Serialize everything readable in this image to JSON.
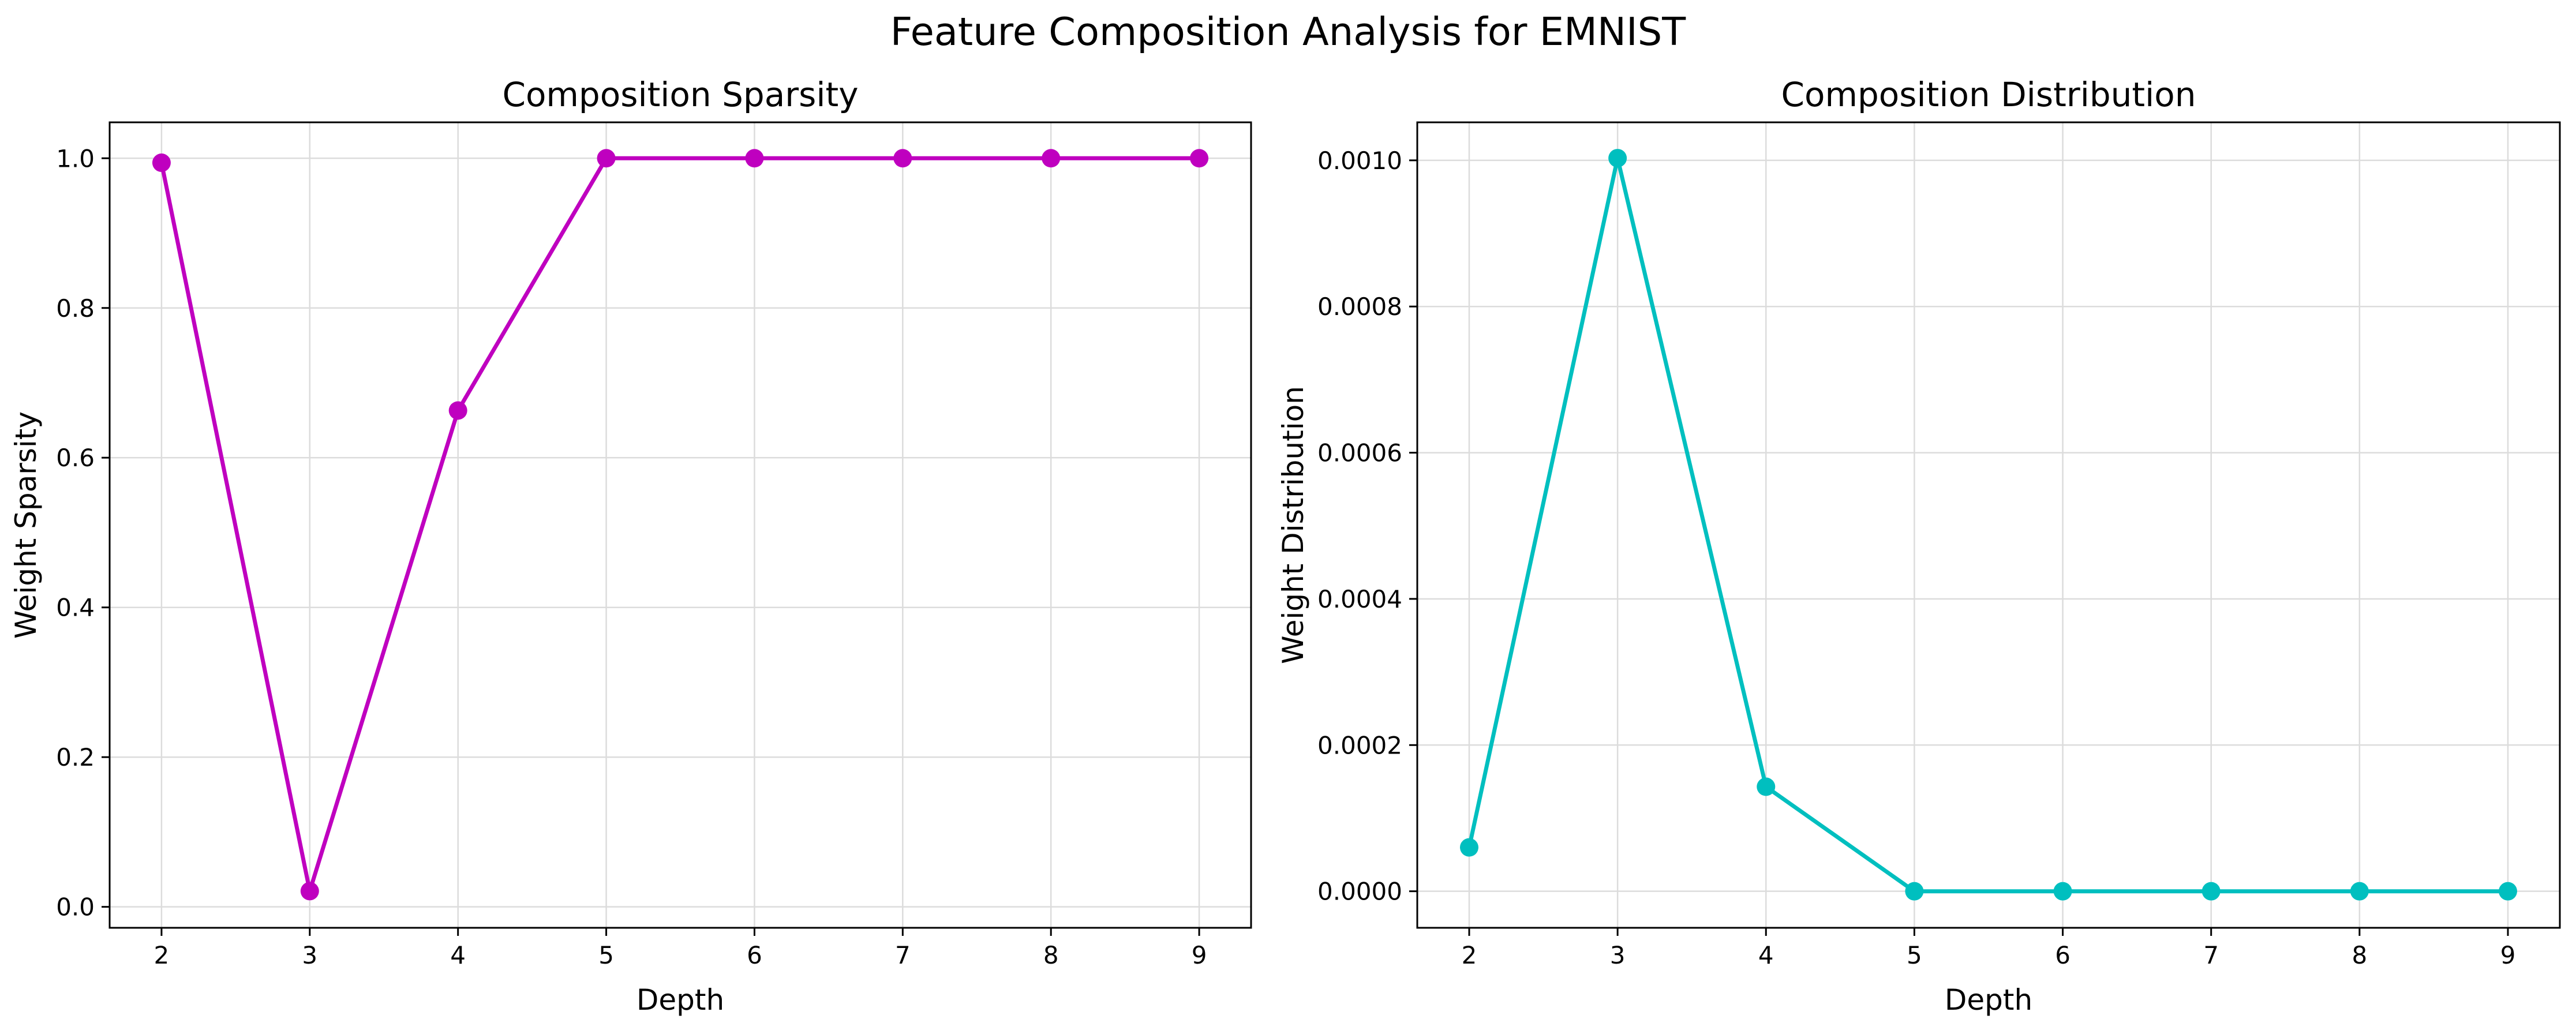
{
  "figure": {
    "suptitle": "Feature Composition Analysis for EMNIST"
  },
  "chart_data": [
    {
      "type": "line",
      "title": "Composition Sparsity",
      "xlabel": "Depth",
      "ylabel": "Weight Sparsity",
      "x": [
        2,
        3,
        4,
        5,
        6,
        7,
        8,
        9
      ],
      "series": [
        {
          "values": [
            0.994,
            0.021,
            0.663,
            1.0,
            1.0,
            1.0,
            1.0,
            1.0
          ],
          "color": "#bf00bf",
          "marker": "circle"
        }
      ],
      "xticks": [
        2,
        3,
        4,
        5,
        6,
        7,
        8,
        9
      ],
      "yticks": [
        0.0,
        0.2,
        0.4,
        0.6,
        0.8,
        1.0
      ],
      "ytick_labels": [
        "0.0",
        "0.2",
        "0.4",
        "0.6",
        "0.8",
        "1.0"
      ],
      "xlim": [
        1.65,
        9.35
      ],
      "ylim": [
        -0.028,
        1.048
      ],
      "grid": true
    },
    {
      "type": "line",
      "title": "Composition Distribution",
      "xlabel": "Depth",
      "ylabel": "Weight Distribution",
      "x": [
        2,
        3,
        4,
        5,
        6,
        7,
        8,
        9
      ],
      "series": [
        {
          "values": [
            6e-05,
            0.001003,
            0.000143,
            0.0,
            0.0,
            0.0,
            0.0,
            0.0
          ],
          "color": "#00bfbf",
          "marker": "circle"
        }
      ],
      "xticks": [
        2,
        3,
        4,
        5,
        6,
        7,
        8,
        9
      ],
      "yticks": [
        0.0,
        0.0002,
        0.0004,
        0.0006,
        0.0008,
        0.001
      ],
      "ytick_labels": [
        "0.0000",
        "0.0002",
        "0.0004",
        "0.0006",
        "0.0008",
        "0.0010"
      ],
      "xlim": [
        1.65,
        9.35
      ],
      "ylim": [
        -5e-05,
        0.001052
      ],
      "grid": true
    }
  ]
}
